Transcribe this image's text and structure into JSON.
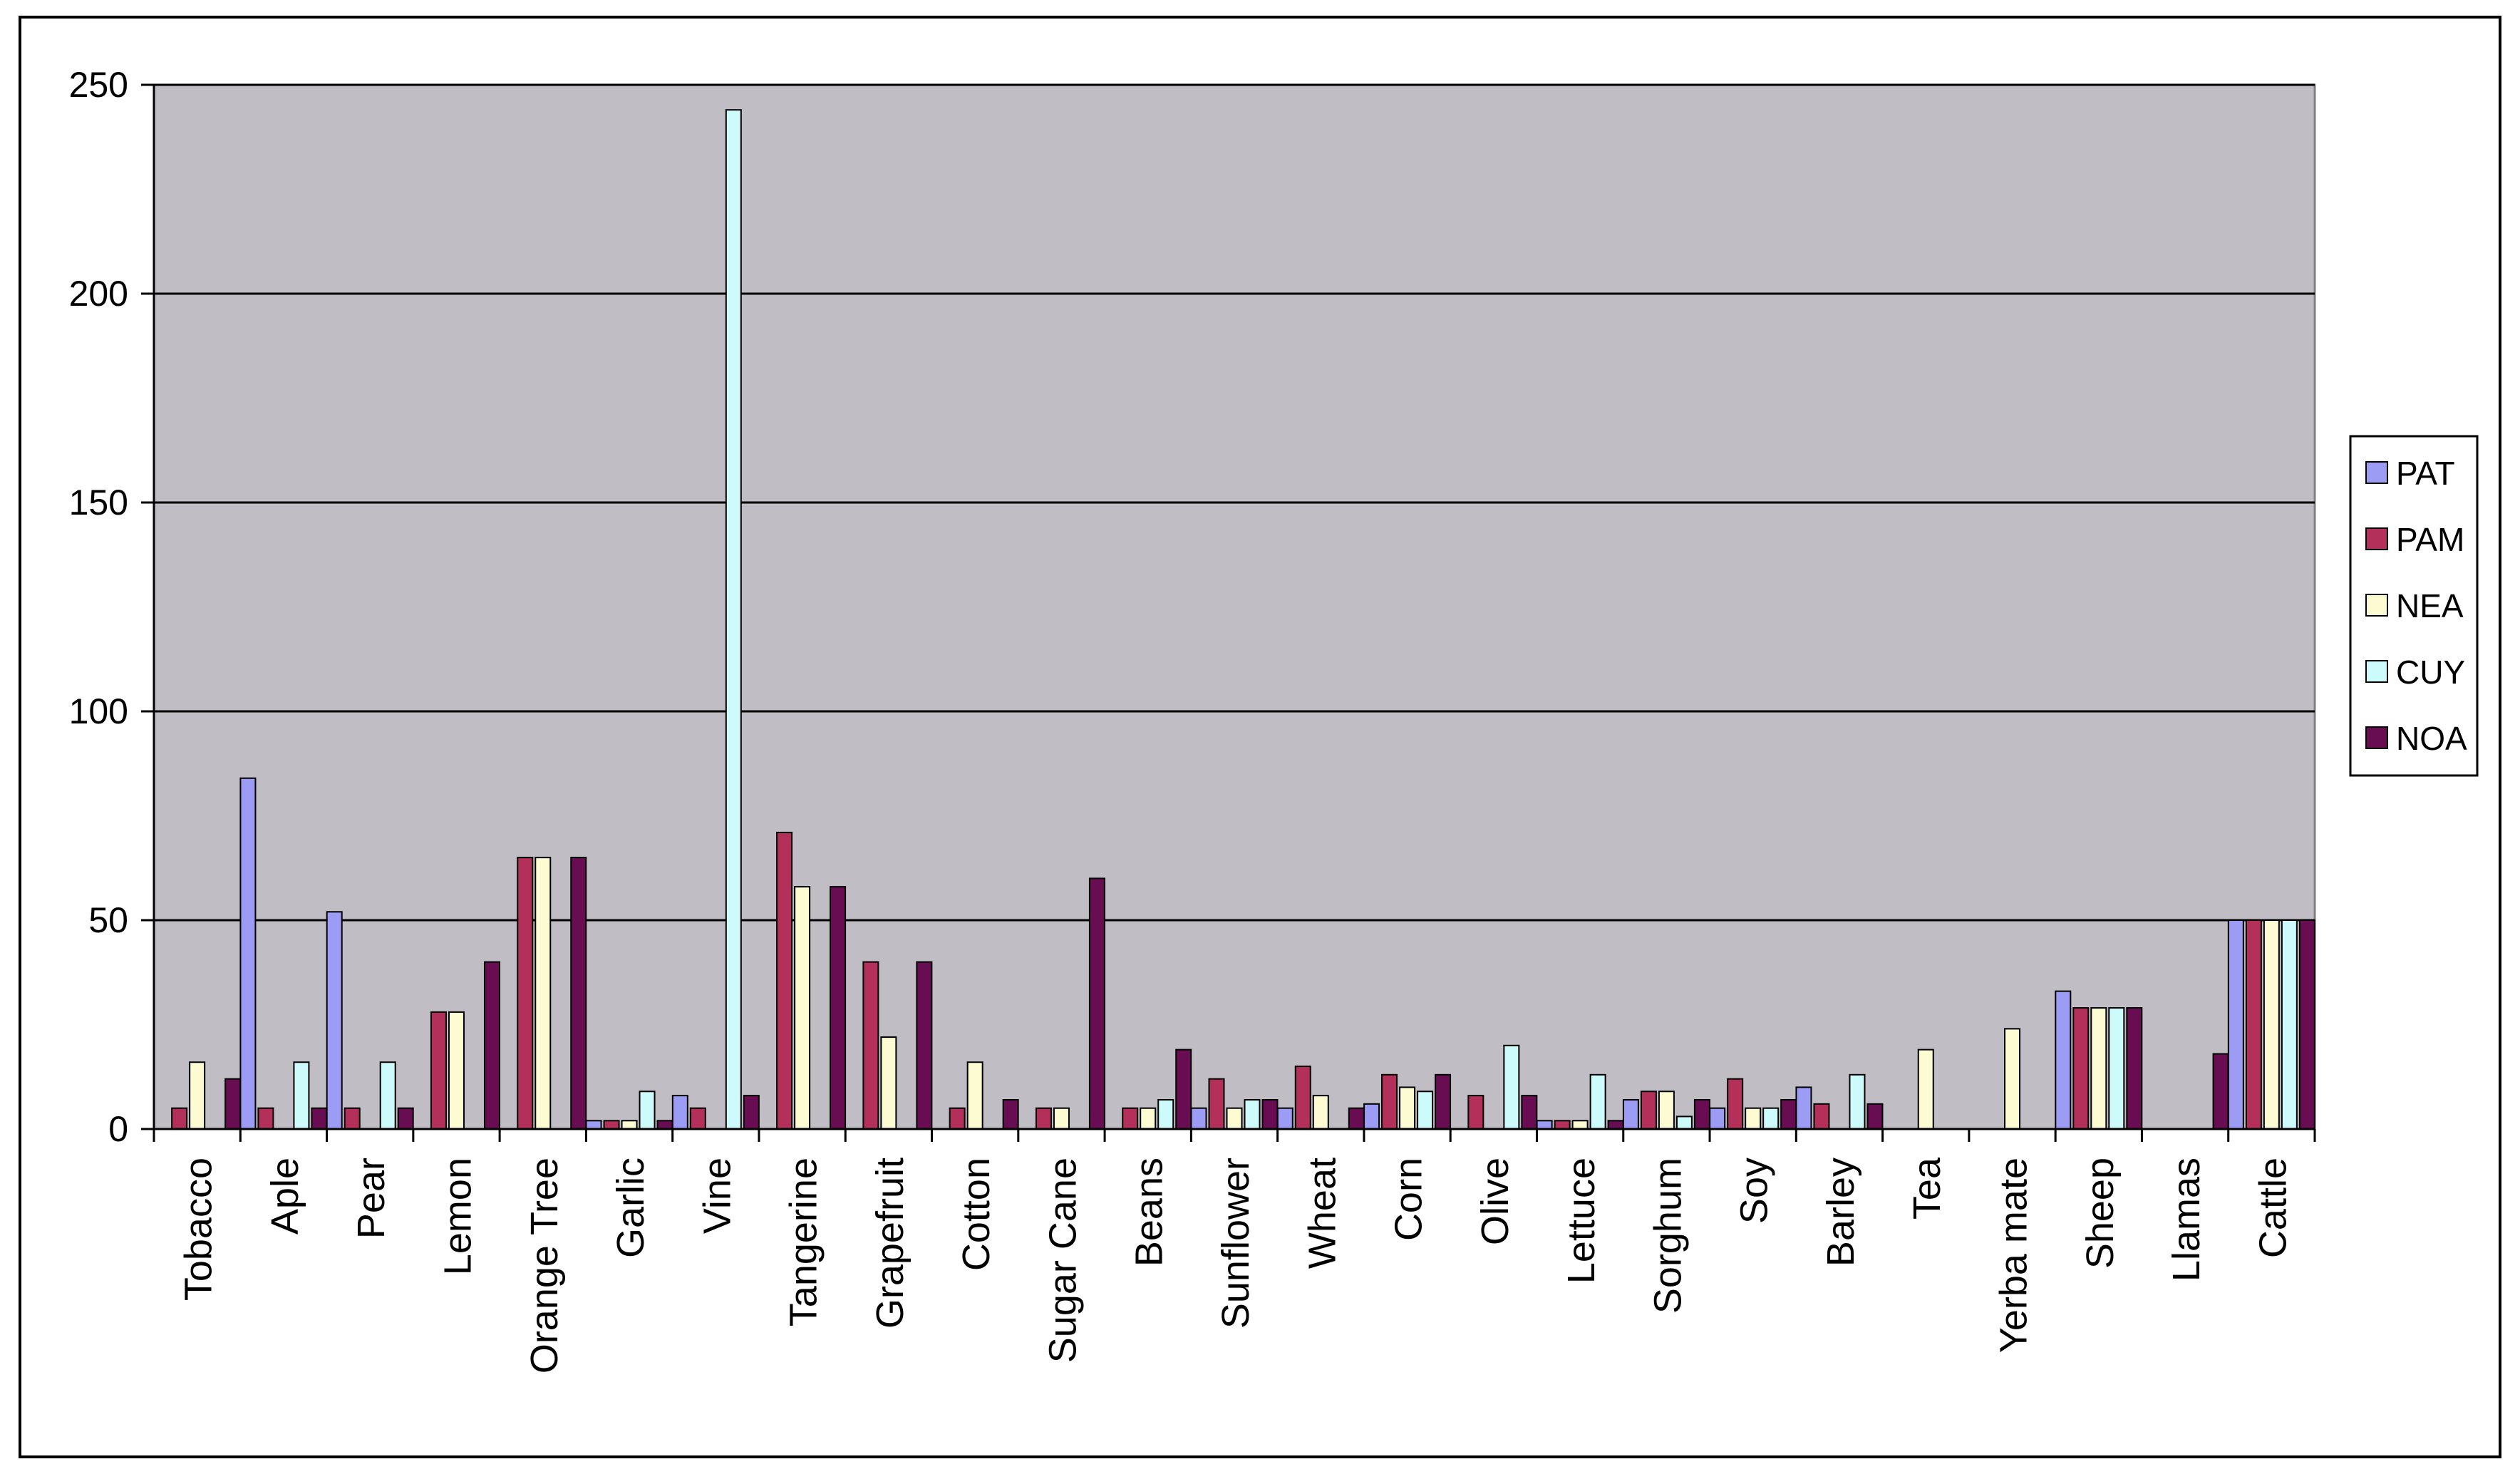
{
  "chart_data": {
    "type": "bar",
    "title": "",
    "xlabel": "",
    "ylabel": "",
    "ylim": [
      0,
      250
    ],
    "yticks": [
      0,
      50,
      100,
      150,
      200,
      250
    ],
    "grid": true,
    "legend_position": "right",
    "colors": {
      "plot_background": "#c0bec4",
      "PAT": "#9c9cf4",
      "PAM": "#b3305a",
      "NEA": "#fcfbd2",
      "CUY": "#cdfbfc",
      "NOA": "#680d52"
    },
    "categories": [
      "Tobacco",
      "Aple",
      "Pear",
      "Lemon",
      "Orange Tree",
      "Garlic",
      "Vine",
      "Tangerine",
      "Grapefruit",
      "Cotton",
      "Sugar Cane",
      "Beans",
      "Sunflower",
      "Wheat",
      "Corn",
      "Olive",
      "Lettuce",
      "Sorghum",
      "Soy",
      "Barley",
      "Tea",
      "Yerba mate",
      "Sheep",
      "Llamas",
      "Cattle"
    ],
    "series": [
      {
        "name": "PAT",
        "values": [
          0,
          84,
          52,
          0,
          0,
          2,
          8,
          0,
          0,
          0,
          0,
          0,
          5,
          5,
          6,
          0,
          2,
          7,
          5,
          10,
          0,
          0,
          33,
          0,
          50
        ]
      },
      {
        "name": "PAM",
        "values": [
          5,
          5,
          5,
          28,
          65,
          2,
          5,
          71,
          40,
          5,
          5,
          5,
          12,
          15,
          13,
          8,
          2,
          9,
          12,
          6,
          0,
          0,
          29,
          0,
          50
        ]
      },
      {
        "name": "NEA",
        "values": [
          16,
          0,
          0,
          28,
          65,
          2,
          0,
          58,
          22,
          16,
          5,
          5,
          5,
          8,
          10,
          0,
          2,
          9,
          5,
          0,
          19,
          24,
          29,
          0,
          50
        ]
      },
      {
        "name": "CUY",
        "values": [
          0,
          16,
          16,
          0,
          0,
          9,
          244,
          0,
          0,
          0,
          0,
          7,
          7,
          0,
          9,
          20,
          13,
          3,
          5,
          13,
          0,
          0,
          29,
          0,
          50
        ]
      },
      {
        "name": "NOA",
        "values": [
          12,
          5,
          5,
          40,
          65,
          2,
          8,
          58,
          40,
          7,
          60,
          19,
          7,
          5,
          13,
          8,
          2,
          7,
          7,
          6,
          0,
          0,
          29,
          18,
          50
        ]
      }
    ]
  }
}
